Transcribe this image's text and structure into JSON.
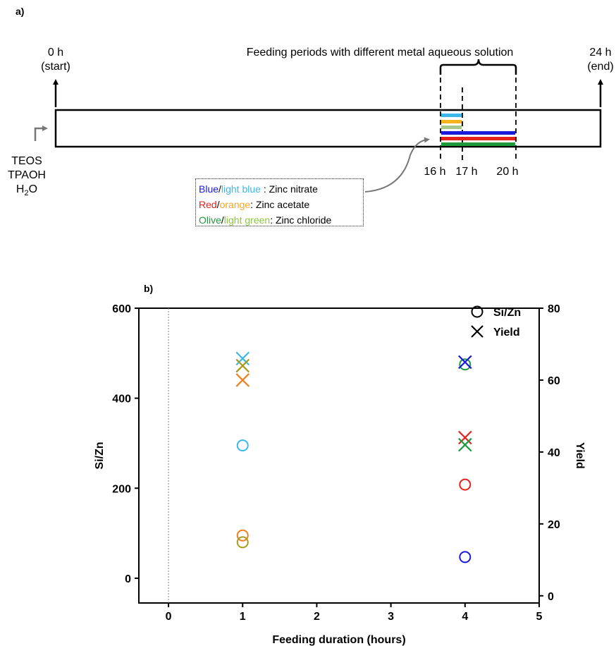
{
  "panel_a": {
    "label": "a)",
    "start_time": "0 h",
    "start_note": "(start)",
    "end_time": "24 h",
    "end_note": "(end)",
    "feeding_title": "Feeding periods with different metal aqueous solution",
    "reagents": [
      "TEOS",
      "TPAOH",
      "H",
      "2",
      "O"
    ],
    "ticks": [
      "16 h",
      "17 h",
      "20 h"
    ],
    "legend": [
      {
        "c1": "Blue",
        "color1": "#1a1adb",
        "sep": "/",
        "c2": "light blue",
        "color2": "#3cb8e8",
        "desc": " : Zinc nitrate"
      },
      {
        "c1": "Red",
        "color1": "#e3221c",
        "sep": "/",
        "c2": "orange",
        "color2": "#f5a623",
        "desc": ": Zinc acetate"
      },
      {
        "c1": "Olive",
        "color1": "#1c9a3c",
        "sep": "/",
        "c2": "light green",
        "color2": "#8cc63f",
        "desc": ": Zinc chloride"
      }
    ],
    "bar_colors": {
      "light_blue": "#3cb8e8",
      "orange": "#f5b41c",
      "light_green": "#a7c88c",
      "blue": "#1a1adb",
      "red": "#e3221c",
      "green": "#1c9a3c"
    }
  },
  "chart_data": {
    "type": "scatter",
    "panel_label": "b)",
    "xlabel": "Feeding duration (hours)",
    "ylabel_left": "Si/Zn",
    "ylabel_right": "Yield",
    "xlim": [
      -0.4,
      5
    ],
    "x_ticks": [
      0,
      1,
      2,
      3,
      4,
      5
    ],
    "ylim_left": [
      -55,
      600
    ],
    "y_ticks_left": [
      0,
      200,
      400,
      600
    ],
    "ylim_right": [
      -2,
      80
    ],
    "y_ticks_right": [
      0,
      20,
      40,
      60,
      80
    ],
    "reference_line_x": 0,
    "legend": [
      {
        "label": "Si/Zn",
        "marker": "circle"
      },
      {
        "label": "Yield",
        "marker": "cross"
      }
    ],
    "si_zn_points": [
      {
        "x": 1,
        "y": 295,
        "color": "#3cb8e8"
      },
      {
        "x": 1,
        "y": 95,
        "color": "#f07f1e"
      },
      {
        "x": 1,
        "y": 80,
        "color": "#a89a1e"
      },
      {
        "x": 4,
        "y": 475,
        "color": "#1c9a3c"
      },
      {
        "x": 4,
        "y": 208,
        "color": "#e3221c"
      },
      {
        "x": 4,
        "y": 47,
        "color": "#1a1adb"
      }
    ],
    "yield_points": [
      {
        "x": 1,
        "y": 66,
        "color": "#3cb8e8"
      },
      {
        "x": 1,
        "y": 64,
        "color": "#a89a1e"
      },
      {
        "x": 1,
        "y": 60,
        "color": "#f07f1e"
      },
      {
        "x": 4,
        "y": 65,
        "color": "#1a1adb"
      },
      {
        "x": 4,
        "y": 44,
        "color": "#e3221c"
      },
      {
        "x": 4,
        "y": 42,
        "color": "#1c9a3c"
      }
    ]
  }
}
